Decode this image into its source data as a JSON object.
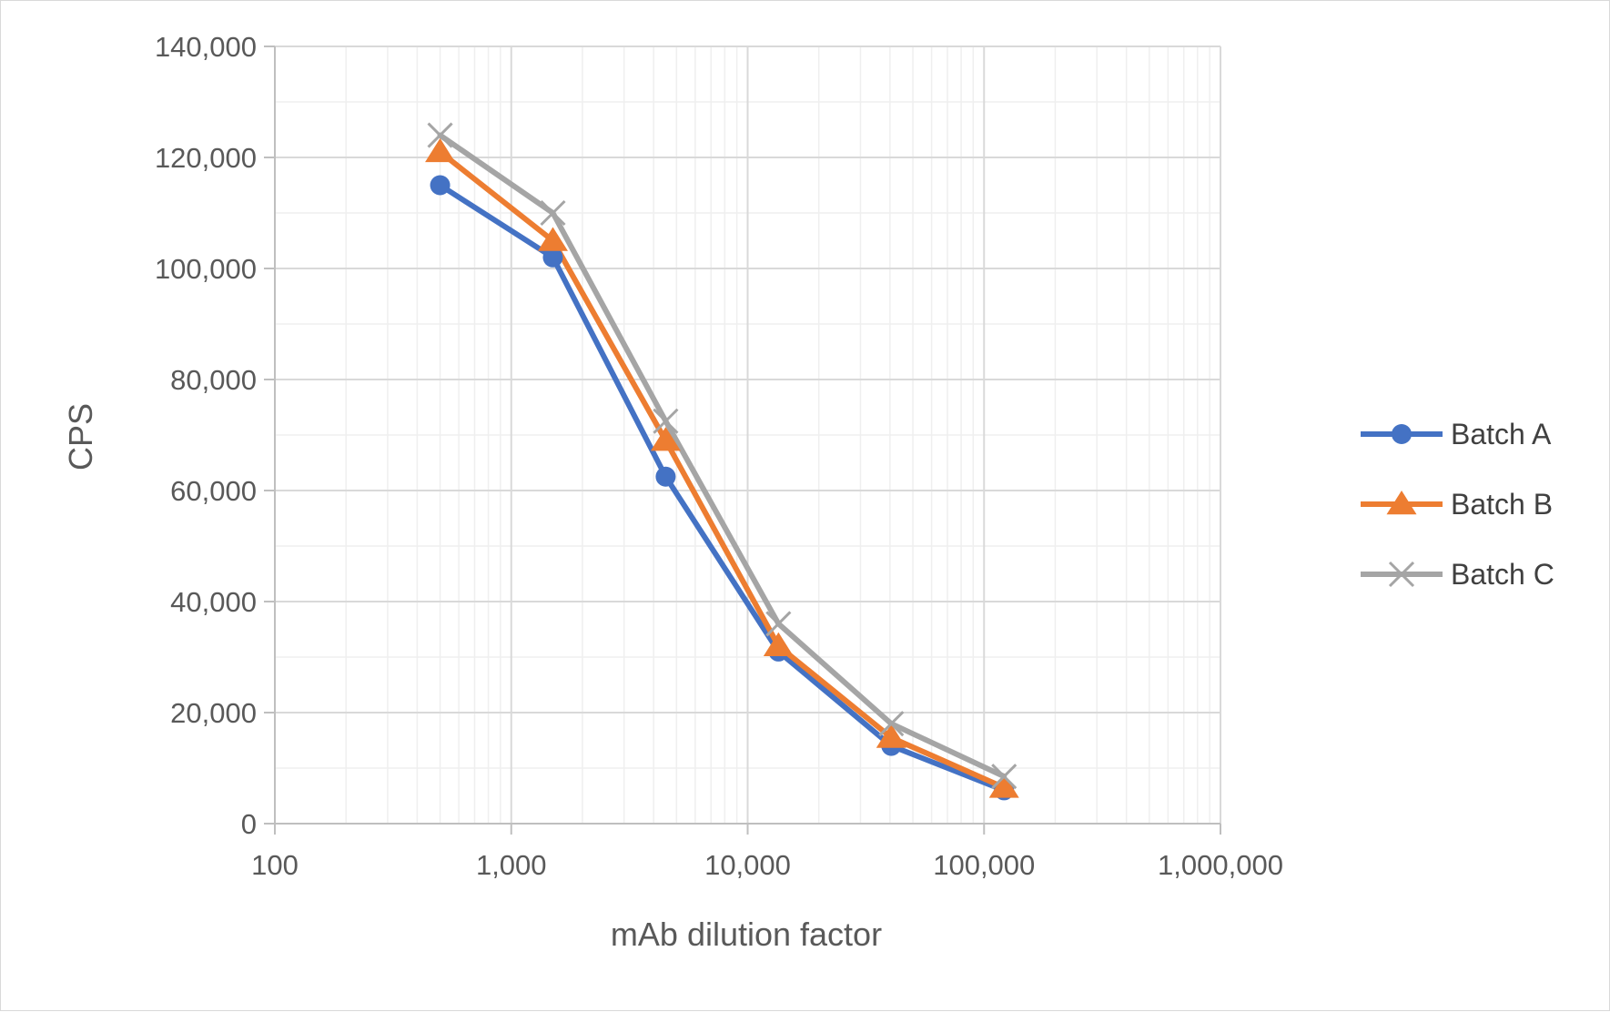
{
  "chart_data": {
    "type": "line",
    "title": "",
    "xlabel": "mAb dilution factor",
    "ylabel": "CPS",
    "x_scale": "log",
    "xlim": [
      100,
      1000000
    ],
    "ylim": [
      0,
      140000
    ],
    "x_ticks": [
      100,
      1000,
      10000,
      100000,
      1000000
    ],
    "x_tick_labels": [
      "100",
      "1,000",
      "10,000",
      "100,000",
      "1,000,000"
    ],
    "y_ticks": [
      0,
      20000,
      40000,
      60000,
      80000,
      100000,
      120000,
      140000
    ],
    "y_tick_labels": [
      "0",
      "20,000",
      "40,000",
      "60,000",
      "80,000",
      "100,000",
      "120,000",
      "140,000"
    ],
    "grid": true,
    "legend_position": "right",
    "x": [
      500,
      1500,
      4500,
      13500,
      40500,
      121500
    ],
    "series": [
      {
        "name": "Batch A",
        "marker": "circle",
        "color": "#4472C4",
        "values": [
          115000,
          102000,
          62500,
          31000,
          14000,
          6000
        ]
      },
      {
        "name": "Batch B",
        "marker": "triangle",
        "color": "#ED7D31",
        "values": [
          121000,
          105000,
          69000,
          32000,
          15500,
          6500
        ]
      },
      {
        "name": "Batch C",
        "marker": "x",
        "color": "#A5A5A5",
        "values": [
          124000,
          110000,
          72500,
          36000,
          18000,
          8500
        ]
      }
    ]
  }
}
